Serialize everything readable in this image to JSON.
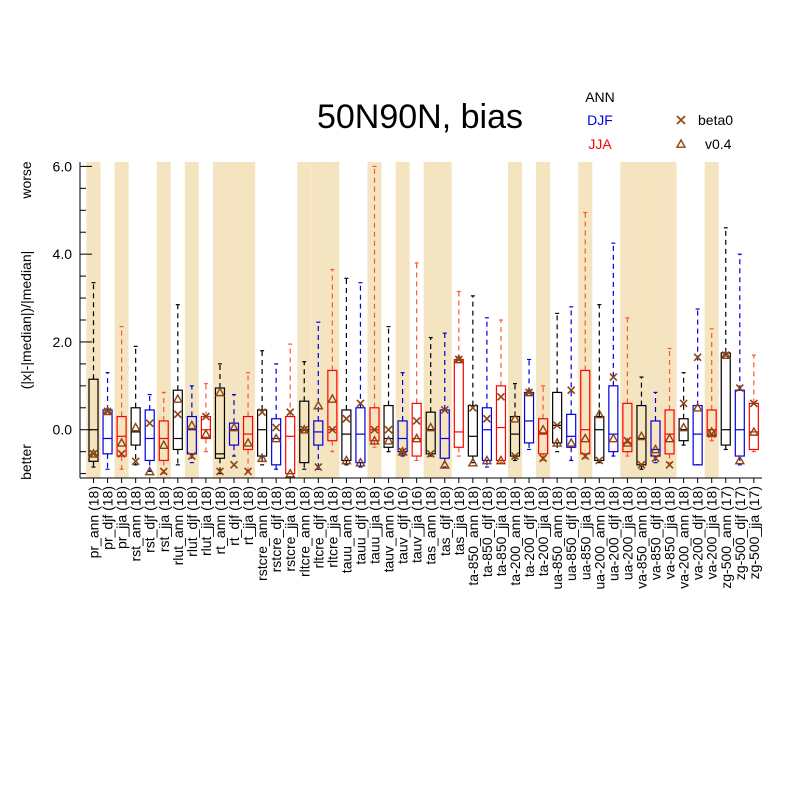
{
  "chart_data": {
    "type": "boxplot",
    "title": "50N90N, bias",
    "ylabel": "(|x|-|median|)/|median|",
    "ylabel_top": "worse",
    "ylabel_bottom": "better",
    "ylim": [
      -1.1,
      6.1
    ],
    "yticks": [
      0.0,
      2.0,
      4.0,
      6.0
    ],
    "ytick_labels": [
      "0.0",
      "2.0",
      "4.0",
      "6.0"
    ],
    "legend": {
      "season_labels": [
        {
          "label": "ANN",
          "color": "#000000"
        },
        {
          "label": "DJF",
          "color": "#0000dd"
        },
        {
          "label": "JJA",
          "color": "#ff0000"
        }
      ],
      "markers": [
        {
          "label": "beta0",
          "symbol": "x",
          "color": "#8b4513"
        },
        {
          "label": "v0.4",
          "symbol": "triangle",
          "color": "#8b4513"
        }
      ]
    },
    "colors": {
      "ANN": "#000000",
      "DJF": "#0000dd",
      "JJA": "#ff0000",
      "JJA_whisker": "#ff5533",
      "shade": "#f5e4c0",
      "marker": "#8b4513"
    },
    "groups": [
      {
        "label": "pr_ann (18)",
        "season": "ANN",
        "shaded": true,
        "wlo": -0.85,
        "q1": -0.72,
        "med": 0.0,
        "q3": 1.15,
        "whi": 3.35,
        "x_val": -0.55,
        "tri": -0.55
      },
      {
        "label": "pr_djf (18)",
        "season": "DJF",
        "shaded": false,
        "wlo": -0.9,
        "q1": -0.55,
        "med": -0.2,
        "q3": 0.45,
        "whi": 1.3,
        "x_val": 0.42,
        "tri": 0.42
      },
      {
        "label": "pr_jja (18)",
        "season": "JJA",
        "shaded": true,
        "wlo": -0.9,
        "q1": -0.6,
        "med": -0.15,
        "q3": 0.3,
        "whi": 2.35,
        "x_val": -0.55,
        "tri": -0.3
      },
      {
        "label": "rst_ann (18)",
        "season": "ANN",
        "shaded": false,
        "wlo": -0.8,
        "q1": -0.35,
        "med": -0.05,
        "q3": 0.5,
        "whi": 1.9,
        "x_val": -0.72,
        "tri": 0.05
      },
      {
        "label": "rst_djf (18)",
        "season": "DJF",
        "shaded": false,
        "wlo": -0.95,
        "q1": -0.7,
        "med": -0.2,
        "q3": 0.45,
        "whi": 0.8,
        "x_val": 0.15,
        "tri": -0.95
      },
      {
        "label": "rst_jja (18)",
        "season": "JJA",
        "shaded": true,
        "wlo": -1.0,
        "q1": -0.7,
        "med": -0.2,
        "q3": 0.2,
        "whi": 0.85,
        "x_val": -0.95,
        "tri": -0.35
      },
      {
        "label": "rlut_ann (18)",
        "season": "ANN",
        "shaded": false,
        "wlo": -0.8,
        "q1": -0.45,
        "med": -0.2,
        "q3": 0.9,
        "whi": 2.85,
        "x_val": 0.35,
        "tri": 0.7
      },
      {
        "label": "rlut_djf (18)",
        "season": "DJF",
        "shaded": true,
        "wlo": -0.75,
        "q1": -0.55,
        "med": 0.0,
        "q3": 0.3,
        "whi": 1.0,
        "x_val": -0.6,
        "tri": 0.1
      },
      {
        "label": "rlut_jja (18)",
        "season": "JJA",
        "shaded": false,
        "wlo": -0.5,
        "q1": -0.2,
        "med": 0.0,
        "q3": 0.3,
        "whi": 1.05,
        "x_val": 0.3,
        "tri": -0.1
      },
      {
        "label": "rt_ann (18)",
        "season": "ANN",
        "shaded": true,
        "wlo": -1.0,
        "q1": -0.65,
        "med": -0.55,
        "q3": 0.95,
        "whi": 1.5,
        "x_val": -0.95,
        "tri": 0.85
      },
      {
        "label": "rt_djf (18)",
        "season": "DJF",
        "shaded": true,
        "wlo": -0.6,
        "q1": -0.35,
        "med": 0.0,
        "q3": 0.15,
        "whi": 0.8,
        "x_val": -0.8,
        "tri": 0.05
      },
      {
        "label": "rt_jja (18)",
        "season": "JJA",
        "shaded": true,
        "wlo": -0.95,
        "q1": -0.45,
        "med": -0.1,
        "q3": 0.3,
        "whi": 1.3,
        "x_val": -0.95,
        "tri": -0.3
      },
      {
        "label": "rstcre_ann (18)",
        "season": "ANN",
        "shaded": false,
        "wlo": -0.8,
        "q1": -0.6,
        "med": 0.0,
        "q3": 0.45,
        "whi": 1.8,
        "x_val": 0.4,
        "tri": -0.65
      },
      {
        "label": "rstcre_djf (18)",
        "season": "DJF",
        "shaded": false,
        "wlo": -0.9,
        "q1": -0.8,
        "med": -0.2,
        "q3": 0.25,
        "whi": 1.5,
        "x_val": 0.05,
        "tri": -0.2
      },
      {
        "label": "rstcre_jja (18)",
        "season": "JJA",
        "shaded": false,
        "wlo": -1.0,
        "q1": -1.0,
        "med": -0.15,
        "q3": 0.3,
        "whi": 1.95,
        "x_val": 0.4,
        "tri": -1.0
      },
      {
        "label": "rltcre_ann (18)",
        "season": "ANN",
        "shaded": true,
        "wlo": -0.9,
        "q1": -0.75,
        "med": 0.0,
        "q3": 0.65,
        "whi": 1.55,
        "x_val": 0.0,
        "tri": 0.0
      },
      {
        "label": "rltcre_djf (18)",
        "season": "DJF",
        "shaded": true,
        "wlo": -0.9,
        "q1": -0.35,
        "med": -0.05,
        "q3": 0.2,
        "whi": 2.45,
        "x_val": -0.85,
        "tri": 0.55
      },
      {
        "label": "rltcre_jja (18)",
        "season": "JJA",
        "shaded": true,
        "wlo": -0.5,
        "q1": -0.25,
        "med": 0.0,
        "q3": 1.35,
        "whi": 3.65,
        "x_val": 0.0,
        "tri": 0.7
      },
      {
        "label": "tauu_ann (18)",
        "season": "ANN",
        "shaded": false,
        "wlo": -0.8,
        "q1": -0.7,
        "med": -0.1,
        "q3": 0.45,
        "whi": 3.45,
        "x_val": 0.25,
        "tri": -0.7
      },
      {
        "label": "tauu_djf (18)",
        "season": "DJF",
        "shaded": false,
        "wlo": -0.85,
        "q1": -0.75,
        "med": -0.1,
        "q3": 0.5,
        "whi": 3.35,
        "x_val": 0.6,
        "tri": -0.75
      },
      {
        "label": "tauu_jja (18)",
        "season": "JJA",
        "shaded": true,
        "wlo": -0.4,
        "q1": -0.25,
        "med": 0.0,
        "q3": 0.5,
        "whi": 6.0,
        "x_val": 0.0,
        "tri": -0.25
      },
      {
        "label": "tauv_ann (16)",
        "season": "ANN",
        "shaded": false,
        "wlo": -0.5,
        "q1": -0.4,
        "med": -0.2,
        "q3": 0.55,
        "whi": 2.35,
        "x_val": 0.0,
        "tri": -0.25
      },
      {
        "label": "tauv_djf (16)",
        "season": "DJF",
        "shaded": true,
        "wlo": -0.6,
        "q1": -0.5,
        "med": -0.2,
        "q3": 0.2,
        "whi": 1.3,
        "x_val": -0.5,
        "tri": -0.5
      },
      {
        "label": "tauv_jja (16)",
        "season": "JJA",
        "shaded": false,
        "wlo": -0.7,
        "q1": -0.6,
        "med": -0.2,
        "q3": 0.6,
        "whi": 3.8,
        "x_val": 0.2,
        "tri": -0.2
      },
      {
        "label": "tas_ann (18)",
        "season": "ANN",
        "shaded": true,
        "wlo": -0.6,
        "q1": -0.55,
        "med": 0.0,
        "q3": 0.4,
        "whi": 2.1,
        "x_val": -0.55,
        "tri": 0.05
      },
      {
        "label": "tas_djf (18)",
        "season": "DJF",
        "shaded": true,
        "wlo": -0.85,
        "q1": -0.65,
        "med": -0.2,
        "q3": 0.45,
        "whi": 2.2,
        "x_val": 0.45,
        "tri": -0.8
      },
      {
        "label": "tas_jja (18)",
        "season": "JJA",
        "shaded": false,
        "wlo": -0.6,
        "q1": -0.4,
        "med": -0.05,
        "q3": 1.6,
        "whi": 3.15,
        "x_val": 1.6,
        "tri": 1.6
      },
      {
        "label": "ta-850_ann (18)",
        "season": "ANN",
        "shaded": false,
        "wlo": -0.75,
        "q1": -0.6,
        "med": -0.15,
        "q3": 0.55,
        "whi": 3.05,
        "x_val": 0.5,
        "tri": -0.75
      },
      {
        "label": "ta-850_djf (18)",
        "season": "DJF",
        "shaded": false,
        "wlo": -0.85,
        "q1": -0.7,
        "med": 0.0,
        "q3": 0.5,
        "whi": 2.55,
        "x_val": 0.25,
        "tri": -0.7
      },
      {
        "label": "ta-850_jja (18)",
        "season": "JJA",
        "shaded": false,
        "wlo": -0.75,
        "q1": -0.7,
        "med": 0.05,
        "q3": 1.0,
        "whi": 2.5,
        "x_val": 0.75,
        "tri": -0.7
      },
      {
        "label": "ta-200_ann (18)",
        "season": "ANN",
        "shaded": true,
        "wlo": -0.7,
        "q1": -0.6,
        "med": -0.1,
        "q3": 0.3,
        "whi": 1.05,
        "x_val": -0.6,
        "tri": 0.25
      },
      {
        "label": "ta-200_djf (18)",
        "season": "DJF",
        "shaded": false,
        "wlo": -0.45,
        "q1": -0.3,
        "med": 0.2,
        "q3": 0.85,
        "whi": 1.6,
        "x_val": 0.85,
        "tri": 0.85
      },
      {
        "label": "ta-200_jja (18)",
        "season": "JJA",
        "shaded": true,
        "wlo": -0.7,
        "q1": -0.55,
        "med": -0.1,
        "q3": 0.25,
        "whi": 1.0,
        "x_val": -0.65,
        "tri": 0.0
      },
      {
        "label": "ua-850_ann (18)",
        "season": "ANN",
        "shaded": false,
        "wlo": -0.5,
        "q1": -0.3,
        "med": 0.1,
        "q3": 0.85,
        "whi": 2.65,
        "x_val": 0.1,
        "tri": -0.3
      },
      {
        "label": "ua-850_djf (18)",
        "season": "DJF",
        "shaded": false,
        "wlo": -0.7,
        "q1": -0.4,
        "med": -0.15,
        "q3": 0.35,
        "whi": 2.8,
        "x_val": 0.9,
        "tri": -0.3
      },
      {
        "label": "ua-850_jja (18)",
        "season": "JJA",
        "shaded": true,
        "wlo": -0.65,
        "q1": -0.55,
        "med": 0.0,
        "q3": 1.35,
        "whi": 4.95,
        "x_val": -0.6,
        "tri": -0.2
      },
      {
        "label": "ua-200_ann (18)",
        "season": "ANN",
        "shaded": false,
        "wlo": -0.75,
        "q1": -0.7,
        "med": 0.0,
        "q3": 0.3,
        "whi": 2.85,
        "x_val": -0.7,
        "tri": 0.35
      },
      {
        "label": "ua-200_djf (18)",
        "season": "DJF",
        "shaded": false,
        "wlo": -0.6,
        "q1": -0.5,
        "med": -0.1,
        "q3": 1.0,
        "whi": 4.25,
        "x_val": 1.2,
        "tri": -0.2
      },
      {
        "label": "ua-200_jja (18)",
        "season": "JJA",
        "shaded": true,
        "wlo": -0.6,
        "q1": -0.5,
        "med": -0.3,
        "q3": 0.6,
        "whi": 2.55,
        "x_val": -0.25,
        "tri": -0.3
      },
      {
        "label": "va-850_ann (18)",
        "season": "ANN",
        "shaded": true,
        "wlo": -0.9,
        "q1": -0.8,
        "med": -0.2,
        "q3": 0.55,
        "whi": 1.2,
        "x_val": -0.8,
        "tri": -0.15
      },
      {
        "label": "va-850_djf (18)",
        "season": "DJF",
        "shaded": true,
        "wlo": -0.75,
        "q1": -0.6,
        "med": -0.45,
        "q3": 0.2,
        "whi": 0.85,
        "x_val": -0.65,
        "tri": -0.45
      },
      {
        "label": "va-850_jja (18)",
        "season": "JJA",
        "shaded": true,
        "wlo": -0.75,
        "q1": -0.55,
        "med": -0.1,
        "q3": 0.45,
        "whi": 1.85,
        "x_val": -0.8,
        "tri": -0.2
      },
      {
        "label": "va-200_ann (18)",
        "season": "ANN",
        "shaded": false,
        "wlo": -0.35,
        "q1": -0.25,
        "med": 0.0,
        "q3": 0.25,
        "whi": 1.3,
        "x_val": 0.6,
        "tri": 0.05
      },
      {
        "label": "va-200_djf (18)",
        "season": "DJF",
        "shaded": false,
        "wlo": -0.8,
        "q1": -0.8,
        "med": -0.1,
        "q3": 0.55,
        "whi": 2.75,
        "x_val": 1.65,
        "tri": 0.5
      },
      {
        "label": "va-200_jja (18)",
        "season": "JJA",
        "shaded": true,
        "wlo": -0.25,
        "q1": -0.15,
        "med": 0.0,
        "q3": 0.45,
        "whi": 2.3,
        "x_val": -0.1,
        "tri": -0.05
      },
      {
        "label": "zg-500_ann (17)",
        "season": "ANN",
        "shaded": false,
        "wlo": -0.45,
        "q1": -0.35,
        "med": 0.0,
        "q3": 1.75,
        "whi": 4.6,
        "x_val": 1.7,
        "tri": 1.7
      },
      {
        "label": "zg-500_djf (17)",
        "season": "DJF",
        "shaded": false,
        "wlo": -0.8,
        "q1": -0.6,
        "med": 0.0,
        "q3": 0.9,
        "whi": 4.0,
        "x_val": 0.95,
        "tri": -0.7
      },
      {
        "label": "zg-500_jja (17)",
        "season": "JJA",
        "shaded": false,
        "wlo": -0.5,
        "q1": -0.45,
        "med": -0.05,
        "q3": 0.6,
        "whi": 1.7,
        "x_val": 0.6,
        "tri": -0.05
      }
    ]
  }
}
